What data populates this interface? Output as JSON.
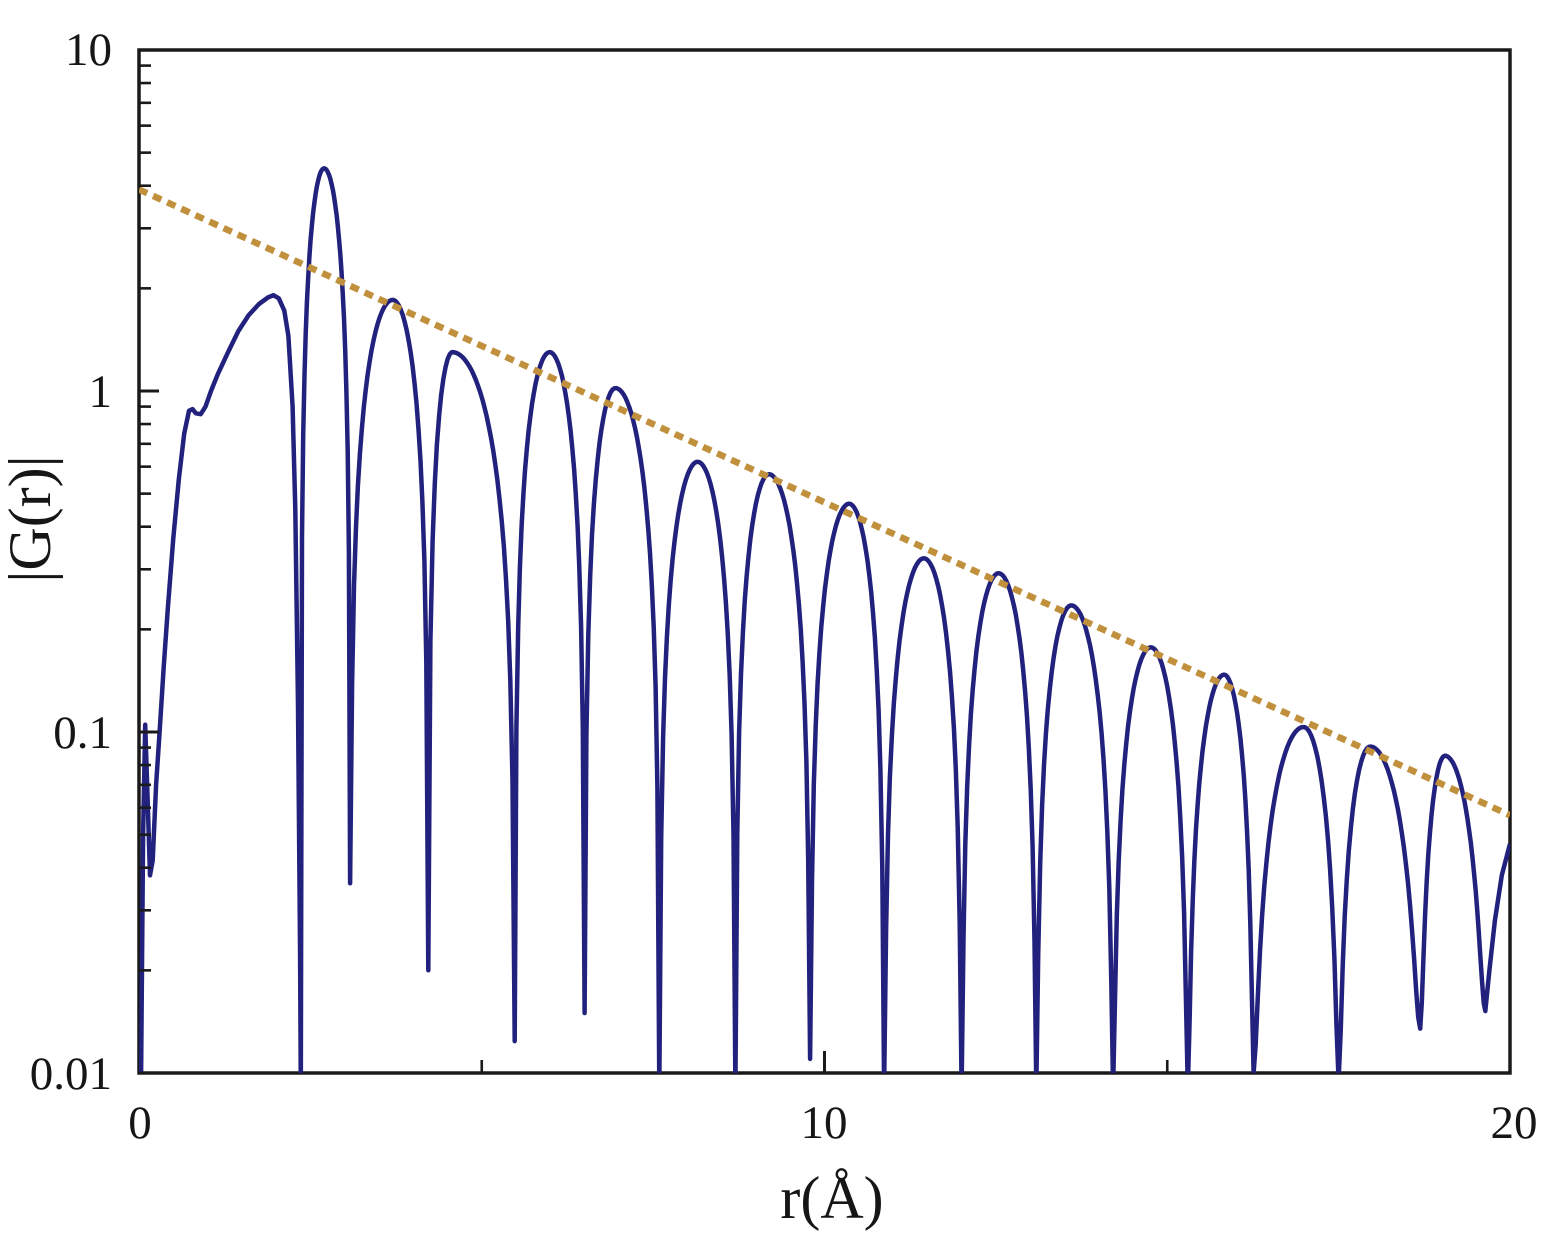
{
  "figure": {
    "kind": "semilog PDF decay plot",
    "background": "#ffffff",
    "frame_color": "#1a1a1a"
  },
  "axes": {
    "x": {
      "label": "r(Å)",
      "min": 0,
      "max": 20,
      "tick_values": [
        0,
        10,
        20
      ],
      "tick_labels": [
        "0",
        "10",
        "20"
      ],
      "minor_tick_values": [
        5,
        15
      ]
    },
    "y": {
      "label": "|G(r)|",
      "scale": "log",
      "min": 0.01,
      "max": 10,
      "tick_values": [
        10,
        1,
        0.1,
        0.01
      ],
      "tick_labels": [
        "10",
        "1",
        "0.1",
        "0.01"
      ]
    }
  },
  "chart_data": {
    "type": "line",
    "title": "",
    "xlabel": "r(Å)",
    "ylabel": "|G(r)|",
    "xlim": [
      0,
      20
    ],
    "ylim_log": [
      0.01,
      10
    ],
    "grid": false,
    "legend": "none",
    "series": [
      {
        "name": "abs-pdf-curve",
        "color": "#22227e",
        "style": "solid",
        "line_width": 4.5,
        "lead_points": [
          [
            0.03,
            0.01
          ],
          [
            0.06,
            0.05
          ],
          [
            0.09,
            0.105
          ],
          [
            0.13,
            0.06
          ],
          [
            0.16,
            0.038
          ],
          [
            0.2,
            0.042
          ],
          [
            0.25,
            0.07
          ],
          [
            0.3,
            0.1
          ],
          [
            0.36,
            0.155
          ],
          [
            0.42,
            0.23
          ],
          [
            0.5,
            0.37
          ],
          [
            0.58,
            0.55
          ],
          [
            0.66,
            0.75
          ],
          [
            0.73,
            0.875
          ],
          [
            0.78,
            0.885
          ],
          [
            0.83,
            0.86
          ],
          [
            0.9,
            0.855
          ],
          [
            0.97,
            0.9
          ],
          [
            1.05,
            1.0
          ],
          [
            1.15,
            1.12
          ],
          [
            1.3,
            1.3
          ],
          [
            1.45,
            1.5
          ],
          [
            1.6,
            1.67
          ],
          [
            1.75,
            1.8
          ],
          [
            1.88,
            1.88
          ],
          [
            1.96,
            1.91
          ],
          [
            2.04,
            1.87
          ],
          [
            2.12,
            1.72
          ],
          [
            2.18,
            1.45
          ],
          [
            2.24,
            0.9
          ],
          [
            2.28,
            0.45
          ],
          [
            2.32,
            0.12
          ],
          [
            2.35,
            0.022
          ],
          [
            2.36,
            0.009
          ]
        ],
        "peaks": [
          [
            2.7,
            4.5
          ],
          [
            3.7,
            1.85
          ],
          [
            4.57,
            1.3
          ],
          [
            5.99,
            1.3
          ],
          [
            6.95,
            1.02
          ],
          [
            8.15,
            0.62
          ],
          [
            9.19,
            0.57
          ],
          [
            10.36,
            0.467
          ],
          [
            11.45,
            0.323
          ],
          [
            12.54,
            0.292
          ],
          [
            13.6,
            0.235
          ],
          [
            14.76,
            0.177
          ],
          [
            15.83,
            0.147
          ],
          [
            16.99,
            0.103
          ],
          [
            17.96,
            0.09
          ],
          [
            19.05,
            0.084
          ]
        ],
        "dips": [
          [
            2.36,
            0.009
          ],
          [
            3.08,
            0.036
          ],
          [
            4.22,
            0.02
          ],
          [
            5.48,
            0.0124
          ],
          [
            6.5,
            0.015
          ],
          [
            7.59,
            0.009
          ],
          [
            8.7,
            0.009
          ],
          [
            9.79,
            0.011
          ],
          [
            10.87,
            0.009
          ],
          [
            12.0,
            0.009
          ],
          [
            13.09,
            0.009
          ],
          [
            14.21,
            0.009
          ],
          [
            15.3,
            0.009
          ],
          [
            16.26,
            0.01
          ],
          [
            17.5,
            0.0095
          ],
          [
            18.69,
            0.0135
          ],
          [
            19.64,
            0.0152
          ]
        ],
        "tail_points": [
          [
            19.7,
            0.02
          ],
          [
            19.78,
            0.028
          ],
          [
            19.88,
            0.038
          ],
          [
            20.0,
            0.047
          ]
        ]
      },
      {
        "name": "exponential-decay-envelope",
        "color": "#c0903c",
        "style": "dotted",
        "line_width": 6.5,
        "start_value": 3.9,
        "end_value": 0.057,
        "x_range": [
          0,
          20
        ]
      }
    ]
  }
}
